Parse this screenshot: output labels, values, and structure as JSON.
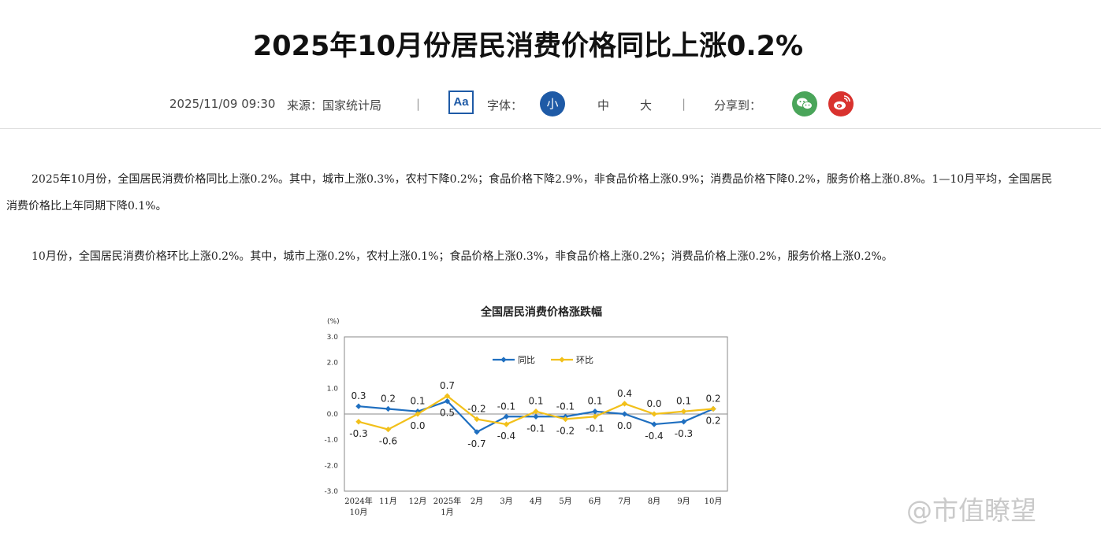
{
  "article": {
    "title": "2025年10月份居民消费价格同比上涨0.2%",
    "datetime": "2025/11/09 09:30",
    "source": "来源：国家统计局",
    "separator": "|",
    "font_button": "Aa",
    "font_label": "字体：",
    "font_sizes": [
      "小",
      "中",
      "大"
    ],
    "share_label": "分享到：",
    "share_icons": [
      "wechat-icon",
      "weibo-icon"
    ],
    "paragraphs": [
      "2025年10月份，全国居民消费价格同比上涨0.2%。其中，城市上涨0.3%，农村下降0.2%；食品价格下降2.9%，非食品价格上涨0.9%；消费品价格下降0.2%，服务价格上涨0.8%。1—10月平均，全国居民消费价格比上年同期下降0.1%。",
      "10月份，全国居民消费价格环比上涨0.2%。其中，城市上涨0.2%，农村上涨0.1%；食品价格上涨0.3%，非食品价格上涨0.2%；消费品价格上涨0.2%，服务价格上涨0.2%。"
    ],
    "watermark": "@市值瞭望"
  },
  "colors": {
    "accent": "#1e5aa6",
    "wechat": "#4aa55a",
    "weibo": "#d9322e",
    "series_yoy": "#1f6fc0",
    "series_mom": "#f2c01a"
  },
  "chart_data": {
    "type": "line",
    "title": "全国居民消费价格涨跌幅",
    "ylabel": "(%)",
    "ylim": [
      -3.0,
      3.0
    ],
    "yticks": [
      "3.0",
      "2.0",
      "1.0",
      "0.0",
      "-1.0",
      "-2.0",
      "-3.0"
    ],
    "categories": [
      [
        "2024年",
        "10月"
      ],
      [
        "11月"
      ],
      [
        "12月"
      ],
      [
        "2025年",
        "1月"
      ],
      [
        "2月"
      ],
      [
        "3月"
      ],
      [
        "4月"
      ],
      [
        "5月"
      ],
      [
        "6月"
      ],
      [
        "7月"
      ],
      [
        "8月"
      ],
      [
        "9月"
      ],
      [
        "10月"
      ]
    ],
    "legend_position": "top-center",
    "series": [
      {
        "name": "同比",
        "color": "#1f6fc0",
        "values": [
          0.3,
          0.2,
          0.1,
          0.5,
          -0.7,
          -0.1,
          -0.1,
          -0.1,
          0.1,
          0.0,
          -0.4,
          -0.3,
          0.2
        ]
      },
      {
        "name": "环比",
        "color": "#f2c01a",
        "values": [
          -0.3,
          -0.6,
          0.0,
          0.7,
          -0.2,
          -0.4,
          0.1,
          -0.2,
          -0.1,
          0.4,
          0.0,
          0.1,
          0.2
        ]
      }
    ]
  }
}
